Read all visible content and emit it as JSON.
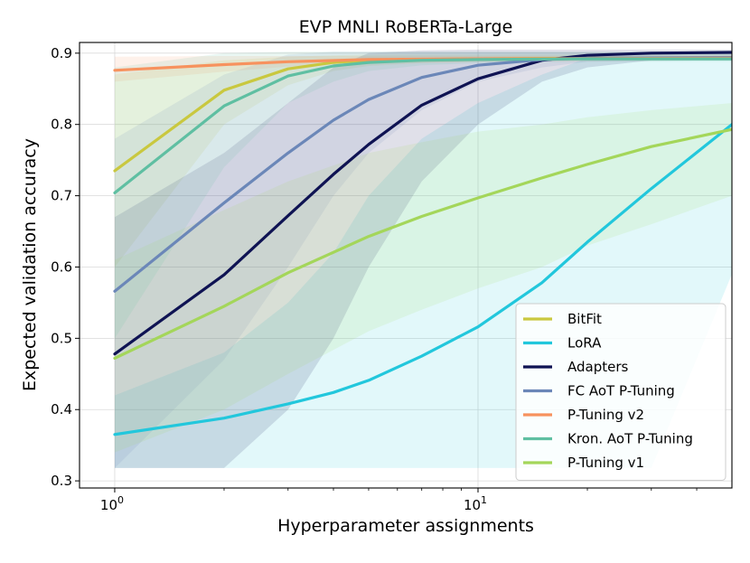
{
  "chart_data": {
    "type": "line",
    "title": "EVP MNLI RoBERTa-Large",
    "xlabel": "Hyperparameter assignments",
    "ylabel": "Expected validation accuracy",
    "xscale": "log",
    "xlim": [
      0.8,
      50
    ],
    "ylim": [
      0.29,
      0.915
    ],
    "yticks": [
      0.3,
      0.4,
      0.5,
      0.6,
      0.7,
      0.8,
      0.9
    ],
    "ytick_labels": [
      "0.3",
      "0.4",
      "0.5",
      "0.6",
      "0.7",
      "0.8",
      "0.9"
    ],
    "xticks": [
      {
        "value": 1,
        "base": "10",
        "exp": "0"
      },
      {
        "value": 10,
        "base": "10",
        "exp": "1"
      }
    ],
    "grid": true,
    "legend_position": "lower-right",
    "series": [
      {
        "name": "BitFit",
        "color": "#c9c83f",
        "x": [
          1,
          2,
          3,
          4,
          5,
          7,
          10,
          20,
          50
        ],
        "y": [
          0.735,
          0.848,
          0.878,
          0.887,
          0.89,
          0.891,
          0.892,
          0.893,
          0.893
        ],
        "lower": [
          0.6,
          0.8,
          0.855,
          0.875,
          0.882,
          0.886,
          0.888,
          0.89,
          0.89
        ],
        "upper": [
          0.87,
          0.89,
          0.895,
          0.897,
          0.898,
          0.898,
          0.898,
          0.898,
          0.898
        ]
      },
      {
        "name": "LoRA",
        "color": "#22c7dc",
        "x": [
          1,
          2,
          3,
          4,
          5,
          7,
          10,
          15,
          20,
          30,
          50
        ],
        "y": [
          0.365,
          0.388,
          0.408,
          0.424,
          0.441,
          0.475,
          0.516,
          0.578,
          0.635,
          0.71,
          0.8
        ],
        "lower": [
          0.318,
          0.318,
          0.318,
          0.318,
          0.318,
          0.318,
          0.318,
          0.318,
          0.318,
          0.318,
          0.59
        ],
        "upper": [
          0.42,
          0.48,
          0.55,
          0.62,
          0.7,
          0.78,
          0.83,
          0.87,
          0.893,
          0.893,
          0.893
        ]
      },
      {
        "name": "Adapters",
        "color": "#0f1353",
        "x": [
          1,
          2,
          3,
          4,
          5,
          7,
          10,
          15,
          20,
          30,
          50
        ],
        "y": [
          0.478,
          0.589,
          0.672,
          0.73,
          0.772,
          0.827,
          0.864,
          0.89,
          0.897,
          0.9,
          0.901
        ],
        "lower": [
          0.318,
          0.318,
          0.4,
          0.5,
          0.6,
          0.72,
          0.8,
          0.86,
          0.88,
          0.89,
          0.89
        ],
        "upper": [
          0.67,
          0.76,
          0.83,
          0.88,
          0.9,
          0.904,
          0.905,
          0.905,
          0.905,
          0.905,
          0.905
        ]
      },
      {
        "name": "FC AoT P-Tuning",
        "color": "#6b87b8",
        "x": [
          1,
          2,
          3,
          4,
          5,
          7,
          10,
          15,
          20,
          50
        ],
        "y": [
          0.566,
          0.69,
          0.76,
          0.806,
          0.835,
          0.866,
          0.883,
          0.891,
          0.893,
          0.894
        ],
        "lower": [
          0.318,
          0.47,
          0.6,
          0.7,
          0.76,
          0.82,
          0.86,
          0.88,
          0.888,
          0.89
        ],
        "upper": [
          0.78,
          0.87,
          0.898,
          0.902,
          0.902,
          0.902,
          0.902,
          0.902,
          0.902,
          0.902
        ]
      },
      {
        "name": "P-Tuning v2",
        "color": "#f7925e",
        "x": [
          1,
          2,
          3,
          5,
          10,
          50
        ],
        "y": [
          0.876,
          0.884,
          0.888,
          0.891,
          0.892,
          0.893
        ],
        "lower": [
          0.86,
          0.874,
          0.881,
          0.886,
          0.888,
          0.89
        ],
        "upper": [
          0.895,
          0.896,
          0.896,
          0.896,
          0.896,
          0.896
        ]
      },
      {
        "name": "Kron. AoT P-Tuning",
        "color": "#5fbfa2",
        "x": [
          1,
          2,
          3,
          4,
          5,
          7,
          10,
          20,
          50
        ],
        "y": [
          0.704,
          0.826,
          0.868,
          0.882,
          0.887,
          0.89,
          0.891,
          0.892,
          0.892
        ],
        "lower": [
          0.5,
          0.74,
          0.83,
          0.86,
          0.875,
          0.883,
          0.886,
          0.888,
          0.888
        ],
        "upper": [
          0.88,
          0.9,
          0.902,
          0.902,
          0.902,
          0.902,
          0.902,
          0.902,
          0.902
        ]
      },
      {
        "name": "P-Tuning v1",
        "color": "#a4d65a",
        "x": [
          1,
          2,
          3,
          5,
          7,
          10,
          15,
          20,
          30,
          50
        ],
        "y": [
          0.472,
          0.545,
          0.592,
          0.643,
          0.671,
          0.697,
          0.725,
          0.744,
          0.769,
          0.793
        ],
        "lower": [
          0.34,
          0.4,
          0.45,
          0.51,
          0.54,
          0.57,
          0.6,
          0.63,
          0.66,
          0.7
        ],
        "upper": [
          0.61,
          0.68,
          0.72,
          0.76,
          0.775,
          0.79,
          0.8,
          0.81,
          0.82,
          0.83
        ]
      }
    ]
  }
}
